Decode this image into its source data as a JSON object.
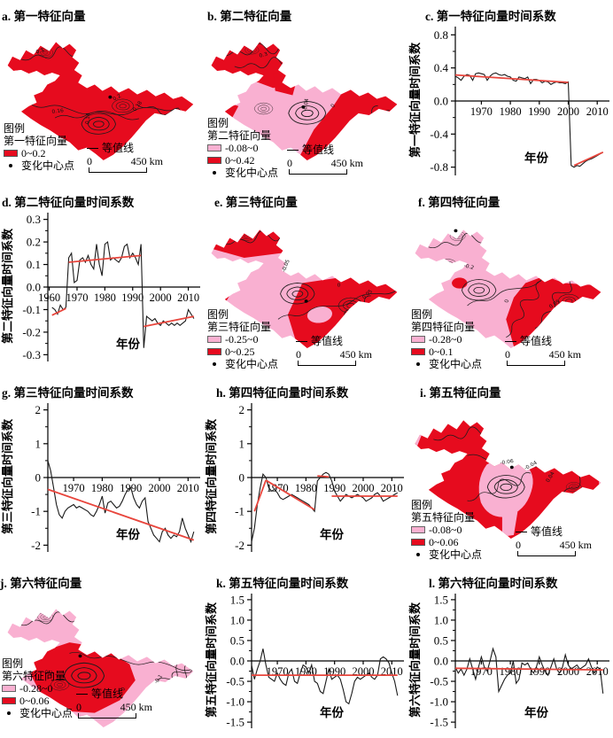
{
  "colors": {
    "red": "#e60b1e",
    "pink": "#f9b0d1",
    "trend": "#e8453c",
    "line": "#1a1a1a",
    "axis": "#000000"
  },
  "figure": {
    "panels": [
      {
        "id": "a",
        "type": "map",
        "title": "a. 第一特征向量",
        "legend": {
          "header": "图例",
          "layer": "第一特征向量",
          "classes": [
            {
              "color": "#e60b1e",
              "label": "0~0.2"
            }
          ],
          "point_label": "变化中心点",
          "isoline_label": "等值线",
          "scale_zero": "0",
          "scale_dist": "450 km"
        },
        "contour_labels": [
          "0.16",
          "0.14",
          "0.2",
          "0.18",
          "0.1"
        ]
      },
      {
        "id": "b",
        "type": "map",
        "title": "b. 第二特征向量",
        "legend": {
          "header": "图例",
          "layer": "第二特征向量",
          "classes": [
            {
              "color": "#f9b0d1",
              "label": "-0.08~0"
            },
            {
              "color": "#e60b1e",
              "label": "0~0.42"
            }
          ],
          "point_label": "变化中心点",
          "isoline_label": "等值线",
          "scale_zero": "0",
          "scale_dist": "450 km"
        },
        "contour_labels": [
          "-0.04",
          "0",
          "0.3"
        ]
      },
      {
        "id": "c",
        "type": "chart",
        "title": "c. 第一特征向量时间系数",
        "chart_index": 0
      },
      {
        "id": "d",
        "type": "chart",
        "title": "d. 第二特征向量时间系数",
        "chart_index": 1
      },
      {
        "id": "e",
        "type": "map",
        "title": "e. 第三特征向量",
        "legend": {
          "header": "图例",
          "layer": "第三特征向量",
          "classes": [
            {
              "color": "#f9b0d1",
              "label": "-0.25~0"
            },
            {
              "color": "#e60b1e",
              "label": "0~0.25"
            }
          ],
          "point_label": "变化中心点",
          "isoline_label": "等值线",
          "scale_zero": "0",
          "scale_dist": "450 km"
        },
        "contour_labels": [
          "0",
          "0.05",
          "-0.05"
        ]
      },
      {
        "id": "f",
        "type": "map",
        "title": "f. 第四特征向量",
        "legend": {
          "header": "图例",
          "layer": "第四特征向量",
          "classes": [
            {
              "color": "#f9b0d1",
              "label": "-0.28~0"
            },
            {
              "color": "#e60b1e",
              "label": "0~0.1"
            }
          ],
          "point_label": "变化中心点",
          "isoline_label": "等值线",
          "scale_zero": "0",
          "scale_dist": "450 km"
        },
        "contour_labels": [
          "-0.2",
          "0",
          "0.05"
        ]
      },
      {
        "id": "g",
        "type": "chart",
        "title": "g. 第三特征向量时间系数",
        "chart_index": 2
      },
      {
        "id": "h",
        "type": "chart",
        "title": "h. 第四特征向量时间系数",
        "chart_index": 3
      },
      {
        "id": "i",
        "type": "map",
        "title": "i. 第五特征向量",
        "legend": {
          "header": "图例",
          "layer": "第五特征向量",
          "classes": [
            {
              "color": "#f9b0d1",
              "label": "-0.08~0"
            },
            {
              "color": "#e60b1e",
              "label": "0~0.06"
            }
          ],
          "point_label": "变化中心点",
          "isoline_label": "等值线",
          "scale_zero": "0",
          "scale_dist": "450 km"
        },
        "contour_labels": [
          "-0.06",
          "0.04",
          "-0.04"
        ]
      },
      {
        "id": "j",
        "type": "map",
        "title": "j. 第六特征向量",
        "legend": {
          "header": "图例",
          "layer": "第六特征向量",
          "classes": [
            {
              "color": "#f9b0d1",
              "label": "-0.28~0"
            },
            {
              "color": "#e60b1e",
              "label": "0~0.06"
            }
          ],
          "point_label": "变化中心点",
          "isoline_label": "等值线",
          "scale_zero": "0",
          "scale_dist": "450 km"
        },
        "contour_labels": [
          "-0.1",
          "0",
          "-0.2"
        ]
      },
      {
        "id": "k",
        "type": "chart",
        "title": "k. 第五特征向量时间系数",
        "chart_index": 4
      },
      {
        "id": "l",
        "type": "chart",
        "title": "l. 第六特征向量时间系数",
        "chart_index": 5
      }
    ]
  },
  "chart_data": [
    {
      "type": "line",
      "panel": "c",
      "title": "c. 第一特征向量时间系数",
      "xlabel": "年份",
      "ylabel": "第一特征向量时间系数",
      "xlim": [
        1961,
        2013
      ],
      "ylim": [
        -0.9,
        0.9
      ],
      "xticks": [
        1970,
        1980,
        1990,
        2000,
        2010
      ],
      "xtick_labels": [
        "1970",
        "1980",
        "1990",
        "2000",
        "2010"
      ],
      "yticks": [
        0.8,
        0.4,
        0.0,
        -0.4,
        -0.8
      ],
      "ytick_labels": [
        "0.8",
        "0.4",
        "0.0",
        "-0.4",
        "-0.8"
      ],
      "year_start": 1961,
      "values": [
        0.3,
        0.28,
        0.25,
        0.3,
        0.32,
        0.31,
        0.25,
        0.33,
        0.34,
        0.33,
        0.32,
        0.25,
        0.3,
        0.33,
        0.34,
        0.32,
        0.31,
        0.32,
        0.3,
        0.29,
        0.25,
        0.24,
        0.29,
        0.28,
        0.27,
        0.29,
        0.21,
        0.26,
        0.26,
        0.25,
        0.22,
        0.24,
        0.23,
        0.2,
        0.22,
        0.23,
        0.22,
        0.22,
        0.21,
        0.23,
        -0.78,
        -0.8,
        -0.78,
        -0.79,
        -0.76,
        -0.73,
        -0.71,
        -0.7,
        -0.68,
        -0.66,
        -0.64,
        -0.62
      ],
      "trend_segments": [
        {
          "x": [
            1961,
            2000
          ],
          "y": [
            0.315,
            0.225
          ]
        },
        {
          "x": [
            2002,
            2012
          ],
          "y": [
            -0.78,
            -0.62
          ]
        }
      ]
    },
    {
      "type": "line",
      "panel": "d",
      "title": "d. 第二特征向量时间系数",
      "xlabel": "年份",
      "ylabel": "第二特征向量时间系数",
      "xlim": [
        1959.5,
        2013
      ],
      "ylim": [
        -0.33,
        0.33
      ],
      "xticks": [
        1960,
        1970,
        1980,
        1990,
        2000,
        2010
      ],
      "xtick_labels": [
        "1960",
        "1970",
        "1980",
        "1990",
        "2000",
        "2010"
      ],
      "yticks": [
        0.3,
        0.2,
        0.1,
        0.0,
        -0.1,
        -0.2,
        -0.3
      ],
      "ytick_labels": [
        "0.3",
        "0.2",
        "0.1",
        "0.0",
        "-0.1",
        "-0.2",
        "-0.3"
      ],
      "year_start": 1961,
      "values": [
        -0.09,
        -0.1,
        -0.12,
        -0.08,
        -0.1,
        -0.09,
        0.13,
        0.15,
        0.02,
        0.03,
        0.12,
        0.13,
        0.11,
        0.14,
        0.1,
        0.08,
        0.19,
        0.1,
        0.05,
        0.19,
        0.2,
        0.12,
        0.13,
        0.12,
        0.11,
        0.13,
        0.18,
        0.19,
        0.13,
        0.15,
        0.13,
        0.1,
        0.19,
        -0.27,
        -0.13,
        -0.14,
        -0.15,
        -0.14,
        -0.16,
        -0.17,
        -0.15,
        -0.16,
        -0.17,
        -0.16,
        -0.17,
        -0.16,
        -0.17,
        -0.16,
        -0.15,
        -0.1,
        -0.12,
        -0.14
      ],
      "trend_segments": [
        {
          "x": [
            1961,
            1966
          ],
          "y": [
            -0.125,
            -0.095
          ]
        },
        {
          "x": [
            1967,
            1993
          ],
          "y": [
            0.11,
            0.14
          ]
        },
        {
          "x": [
            1994,
            2012
          ],
          "y": [
            -0.175,
            -0.13
          ]
        }
      ]
    },
    {
      "type": "line",
      "panel": "g",
      "title": "g. 第三特征向量时间系数",
      "xlabel": "年份",
      "ylabel": "第三特征向量时间系数",
      "xlim": [
        1961,
        2013
      ],
      "ylim": [
        -2.2,
        2.2
      ],
      "xticks": [
        1970,
        1980,
        1990,
        2000,
        2010
      ],
      "xtick_labels": [
        "1970",
        "1980",
        "1990",
        "2000",
        "2010"
      ],
      "yticks": [
        2,
        1,
        0,
        -1,
        -2
      ],
      "ytick_labels": [
        "2",
        "1",
        "0",
        "-1",
        "-2"
      ],
      "year_start": 1961,
      "values": [
        0.5,
        0.2,
        -0.3,
        -0.8,
        -1.1,
        -1.2,
        -1.0,
        -0.9,
        -0.85,
        -0.8,
        -0.9,
        -0.85,
        -0.9,
        -0.95,
        -1.0,
        -1.1,
        -1.15,
        -1.0,
        -0.8,
        -0.55,
        -1.05,
        -0.75,
        -0.7,
        -0.8,
        -0.9,
        -0.85,
        -0.7,
        -0.5,
        -0.35,
        -0.3,
        -0.6,
        -0.8,
        -0.9,
        -0.7,
        -0.6,
        -1.3,
        -1.5,
        -1.7,
        -1.8,
        -1.9,
        -1.6,
        -1.5,
        -1.7,
        -1.8,
        -1.7,
        -1.75,
        -1.6,
        -1.2,
        -1.5,
        -1.7,
        -1.9,
        -1.6
      ],
      "trend_segments": [
        {
          "x": [
            1961,
            2012
          ],
          "y": [
            -0.35,
            -1.85
          ]
        }
      ]
    },
    {
      "type": "line",
      "panel": "h",
      "title": "h. 第四特征向量时间系数",
      "xlabel": "年份",
      "ylabel": "第四特征向量时间系数",
      "xlim": [
        1961,
        2013
      ],
      "ylim": [
        -2.2,
        2.2
      ],
      "xticks": [
        1970,
        1980,
        1990,
        2000,
        2010
      ],
      "xtick_labels": [
        "1970",
        "1980",
        "1990",
        "2000",
        "2010"
      ],
      "yticks": [
        2,
        1,
        0,
        -1,
        -2
      ],
      "ytick_labels": [
        "2",
        "1",
        "0",
        "-1",
        "-2"
      ],
      "year_start": 1961,
      "values": [
        -1.9,
        -1.5,
        -0.8,
        -0.3,
        0.1,
        0.0,
        -0.3,
        -0.4,
        -0.35,
        -0.45,
        -0.6,
        -0.65,
        -0.6,
        -0.55,
        -0.5,
        -0.55,
        -0.6,
        -0.65,
        -0.7,
        -0.75,
        -0.8,
        -0.9,
        -1.0,
        -0.1,
        0.0,
        0.1,
        0.15,
        0.1,
        -0.1,
        -0.4,
        -0.55,
        -0.7,
        -0.6,
        -0.5,
        -0.55,
        -0.6,
        -0.55,
        -0.5,
        -0.55,
        -0.6,
        -0.7,
        -0.65,
        -0.6,
        -0.5,
        -0.45,
        -0.55,
        -0.7,
        -0.65,
        -0.6,
        -0.55,
        -0.5,
        -0.45
      ],
      "trend_segments": [
        {
          "x": [
            1962,
            1966
          ],
          "y": [
            -1.0,
            -0.08
          ]
        },
        {
          "x": [
            1966,
            1983
          ],
          "y": [
            -0.08,
            -0.95
          ]
        },
        {
          "x": [
            1984,
            1988
          ],
          "y": [
            0.05,
            0.02
          ]
        },
        {
          "x": [
            1989,
            2012
          ],
          "y": [
            -0.55,
            -0.55
          ]
        }
      ]
    },
    {
      "type": "line",
      "panel": "k",
      "title": "k. 第五特征向量时间系数",
      "xlabel": "年份",
      "ylabel": "第五特征向量时间系数",
      "xlim": [
        1961,
        2013
      ],
      "ylim": [
        -1.65,
        1.65
      ],
      "xticks": [
        1970,
        1980,
        1990,
        2000,
        2010
      ],
      "xtick_labels": [
        "1970",
        "1980",
        "1990",
        "2000",
        "2010"
      ],
      "yticks": [
        1.5,
        1.0,
        0.5,
        0.0,
        -0.5,
        -1.0,
        -1.5
      ],
      "ytick_labels": [
        "1.5",
        "1.0",
        "0.5",
        "0.0",
        "-0.5",
        "-1.0",
        "-1.5"
      ],
      "year_start": 1961,
      "values": [
        -0.1,
        -0.45,
        -0.2,
        0.0,
        0.3,
        -0.1,
        -0.4,
        -0.45,
        -0.5,
        -0.3,
        -0.45,
        -0.55,
        -0.6,
        -0.3,
        -0.2,
        -0.5,
        -0.55,
        -0.3,
        -0.1,
        -0.15,
        -0.3,
        -0.1,
        -0.5,
        -0.55,
        -0.75,
        -0.8,
        -0.5,
        -0.2,
        -0.45,
        -0.4,
        -0.35,
        -0.45,
        -0.7,
        -1.0,
        -1.05,
        -0.8,
        -0.5,
        -0.4,
        -0.45,
        -0.4,
        -0.35,
        -0.3,
        -0.4,
        -0.45,
        -0.35,
        0.05,
        0.1,
        0.05,
        -0.05,
        -0.3,
        -0.5,
        -0.85
      ],
      "trend_segments": [
        {
          "x": [
            1961,
            2012
          ],
          "y": [
            -0.35,
            -0.35
          ]
        }
      ]
    },
    {
      "type": "line",
      "panel": "l",
      "title": "l. 第六特征向量时间系数",
      "xlabel": "年份",
      "ylabel": "第六特征向量时间系数",
      "xlim": [
        1961,
        2013
      ],
      "ylim": [
        -1.65,
        1.65
      ],
      "xticks": [
        1970,
        1980,
        1990,
        2000,
        2010
      ],
      "xtick_labels": [
        "1970",
        "1980",
        "1990",
        "2000",
        "2010"
      ],
      "yticks": [
        1.5,
        1.0,
        0.5,
        0.0,
        -0.5,
        -1.0,
        -1.5
      ],
      "ytick_labels": [
        "1.5",
        "1.0",
        "0.5",
        "0.0",
        "-0.5",
        "-1.0",
        "-1.5"
      ],
      "year_start": 1961,
      "values": [
        -0.15,
        -0.3,
        -0.2,
        -0.35,
        -0.2,
        0.05,
        -0.2,
        -0.45,
        -0.15,
        0.1,
        -0.15,
        -0.25,
        0.0,
        0.3,
        0.1,
        -0.75,
        -0.6,
        -0.45,
        -0.35,
        -0.3,
        0.0,
        -0.55,
        -0.45,
        -0.05,
        -0.1,
        -0.05,
        -0.2,
        -0.3,
        -0.15,
        0.1,
        -0.1,
        -0.25,
        -0.35,
        -0.15,
        0.05,
        -0.2,
        -0.3,
        -0.15,
        0.15,
        -0.1,
        -0.2,
        -0.15,
        -0.1,
        -0.2,
        -0.15,
        -0.1,
        0.05,
        -0.15,
        -0.3,
        -0.15,
        -0.2,
        -0.8
      ],
      "trend_segments": [
        {
          "x": [
            1961,
            2012
          ],
          "y": [
            -0.18,
            -0.22
          ]
        }
      ]
    }
  ]
}
